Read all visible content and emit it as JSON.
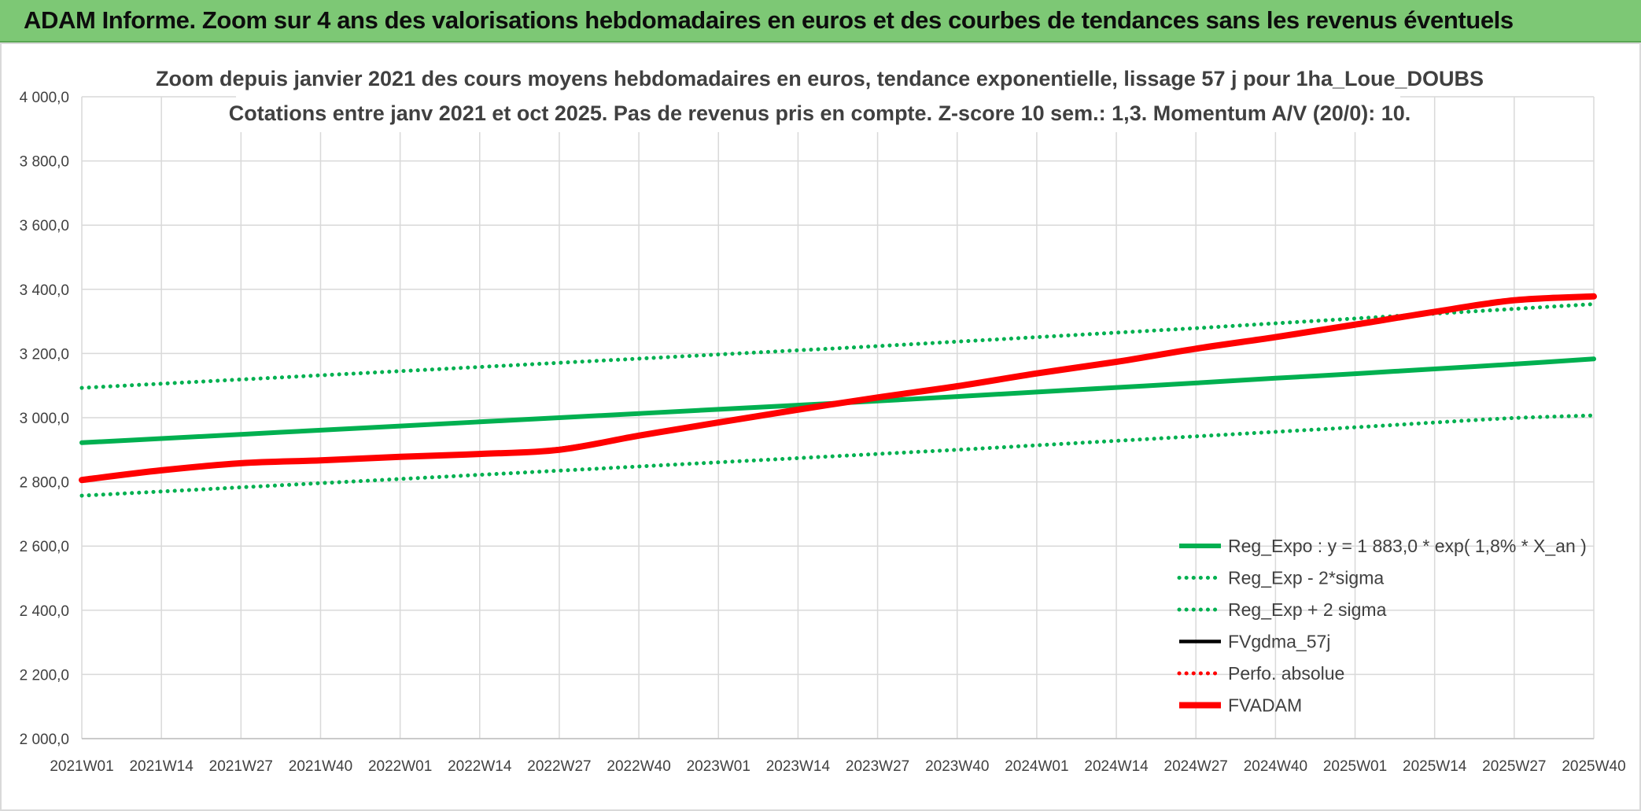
{
  "header": {
    "title": "ADAM Informe. Zoom sur 4 ans des valorisations hebdomadaires en euros et des courbes de tendances sans les revenus éventuels"
  },
  "colors": {
    "banner": "#7dc875",
    "green": "#00b050",
    "red": "#ff0000",
    "black": "#000000",
    "grid": "#d9d9d9",
    "text": "#404040"
  },
  "chart_data": {
    "type": "line",
    "title_line1": "Zoom depuis janvier 2021 des cours moyens hebdomadaires en euros, tendance exponentielle, lissage 57 j pour 1ha_Loue_DOUBS",
    "title_line2": "Cotations entre janv 2021 et oct 2025. Pas de revenus pris en compte. Z-score 10 sem.: 1,3. Momentum A/V (20/0): 10.",
    "x_labels": [
      "2021W01",
      "2021W14",
      "2021W27",
      "2021W40",
      "2022W01",
      "2022W14",
      "2022W27",
      "2022W40",
      "2023W01",
      "2023W14",
      "2023W27",
      "2023W40",
      "2024W01",
      "2024W14",
      "2024W27",
      "2024W40",
      "2025W01",
      "2025W14",
      "2025W27",
      "2025W40"
    ],
    "ylim": [
      2000,
      4000
    ],
    "y_ticks": [
      2000,
      2200,
      2400,
      2600,
      2800,
      3000,
      3200,
      3400,
      3600,
      3800,
      4000
    ],
    "y_tick_labels": [
      "2 000,0",
      "2 200,0",
      "2 400,0",
      "2 600,0",
      "2 800,0",
      "3 000,0",
      "3 200,0",
      "3 400,0",
      "3 600,0",
      "3 800,0",
      "4 000,0"
    ],
    "grid": true,
    "legend_position": "bottom-right",
    "series": [
      {
        "name": "Reg_Expo : y = 1 883,0 * exp( 1,8% *  X_an )",
        "style": "solid-thick",
        "color": "#00b050",
        "values": [
          2922,
          2935,
          2948,
          2961,
          2974,
          2987,
          3000,
          3013,
          3026,
          3039,
          3052,
          3066,
          3080,
          3094,
          3108,
          3123,
          3137,
          3152,
          3167,
          3183
        ]
      },
      {
        "name": "Reg_Exp - 2*sigma",
        "style": "dotted",
        "color": "#00b050",
        "values": [
          2757,
          2770,
          2783,
          2796,
          2809,
          2822,
          2835,
          2848,
          2861,
          2874,
          2887,
          2900,
          2914,
          2928,
          2942,
          2956,
          2970,
          2985,
          2999,
          3007
        ]
      },
      {
        "name": "Reg_Exp + 2 sigma",
        "style": "dotted",
        "color": "#00b050",
        "values": [
          3093,
          3106,
          3119,
          3132,
          3145,
          3158,
          3171,
          3184,
          3197,
          3210,
          3223,
          3237,
          3251,
          3265,
          3279,
          3294,
          3309,
          3324,
          3339,
          3354
        ]
      },
      {
        "name": "FVgdma_57j",
        "style": "solid",
        "color": "#000000",
        "values": [
          2806,
          2836,
          2858,
          2867,
          2878,
          2887,
          2904,
          2946,
          2985,
          3025,
          3063,
          3098,
          3138,
          3174,
          3215,
          3251,
          3290,
          3330,
          3364,
          3376
        ]
      },
      {
        "name": "Perfo. absolue",
        "style": "dotted",
        "color": "#ff0000",
        "values": [
          2806,
          2836,
          2858,
          2867,
          2878,
          2887,
          2900,
          2944,
          2985,
          3025,
          3063,
          3098,
          3138,
          3174,
          3215,
          3251,
          3290,
          3330,
          3366,
          3378
        ]
      },
      {
        "name": "FVADAM",
        "style": "solid-thick",
        "color": "#ff0000",
        "values": [
          2806,
          2836,
          2858,
          2867,
          2878,
          2887,
          2900,
          2944,
          2985,
          3025,
          3063,
          3098,
          3138,
          3174,
          3215,
          3251,
          3290,
          3330,
          3366,
          3378
        ]
      }
    ]
  }
}
